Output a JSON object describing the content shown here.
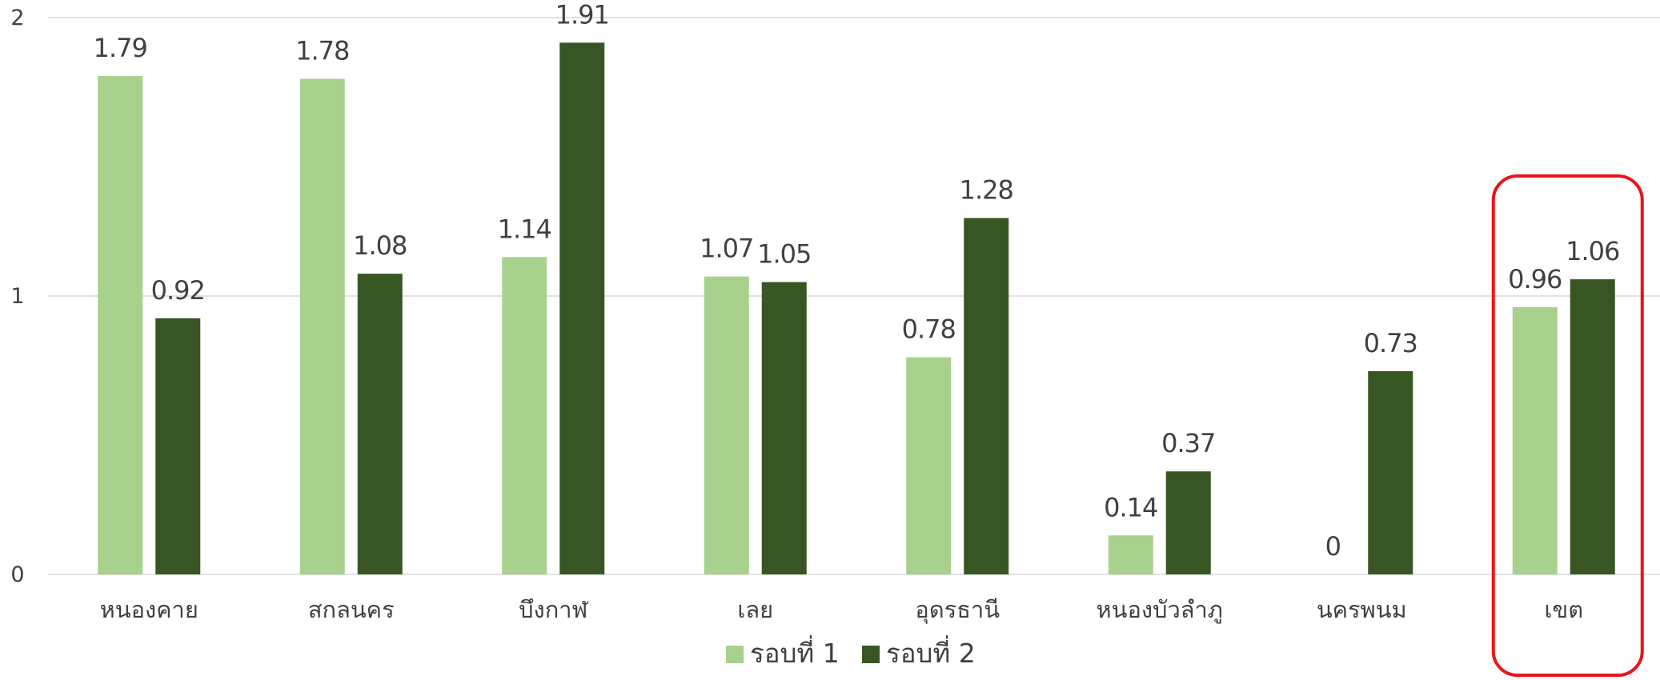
{
  "chart_data": {
    "type": "bar",
    "categories": [
      "หนองคาย",
      "สกลนคร",
      "บึงกาฬ",
      "เลย",
      "อุดรธานี",
      "หนองบัวลำภู",
      "นครพนม",
      "เขต"
    ],
    "series": [
      {
        "name": "รอบที่ 1",
        "color": "#a9d18e",
        "values": [
          1.79,
          1.78,
          1.14,
          1.07,
          0.78,
          0.14,
          0,
          0.96
        ]
      },
      {
        "name": "รอบที่ 2",
        "color": "#375623",
        "values": [
          0.92,
          1.08,
          1.91,
          1.05,
          1.28,
          0.37,
          0.73,
          1.06
        ]
      }
    ],
    "ylim": [
      0,
      2
    ],
    "yticks": [
      0,
      1,
      2
    ],
    "grid": true,
    "legend_position": "bottom",
    "highlight": {
      "category": "เขต",
      "color": "#e8151b"
    }
  }
}
